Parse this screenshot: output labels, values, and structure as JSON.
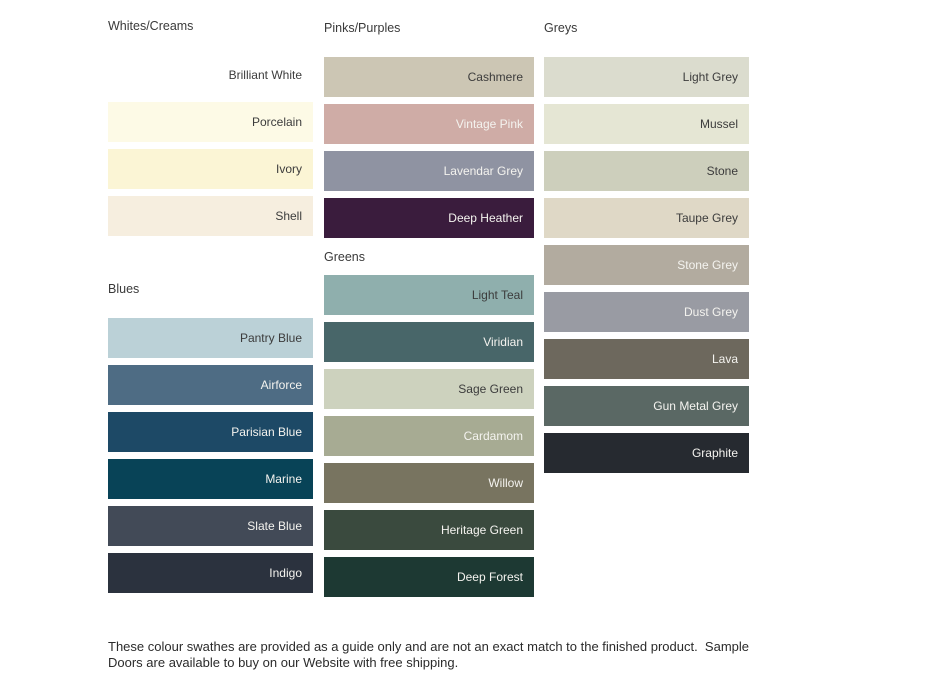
{
  "page": {
    "background": "#ffffff"
  },
  "text_colors": {
    "dark": "#3c3c3c",
    "light": "#f4f3ef"
  },
  "columns": [
    {
      "sections": [
        {
          "id": "whites-creams",
          "label": "Whites/Creams",
          "swatches": [
            {
              "name": "Brilliant White",
              "color": "#ffffff",
              "text": "dark"
            },
            {
              "name": "Porcelain",
              "color": "#fdfae6",
              "text": "dark"
            },
            {
              "name": "Ivory",
              "color": "#fbf5d5",
              "text": "dark"
            },
            {
              "name": "Shell",
              "color": "#f6eedf",
              "text": "dark"
            }
          ]
        },
        {
          "id": "blues",
          "label": "Blues",
          "swatches": [
            {
              "name": "Pantry Blue",
              "color": "#bbd1d7",
              "text": "dark"
            },
            {
              "name": "Airforce",
              "color": "#4e6c84",
              "text": "light"
            },
            {
              "name": "Parisian Blue",
              "color": "#1d4966",
              "text": "light"
            },
            {
              "name": "Marine",
              "color": "#084357",
              "text": "light"
            },
            {
              "name": "Slate Blue",
              "color": "#424a57",
              "text": "light"
            },
            {
              "name": "Indigo",
              "color": "#2b323e",
              "text": "light"
            }
          ]
        }
      ]
    },
    {
      "sections": [
        {
          "id": "pinks-purples",
          "label": "Pinks/Purples",
          "swatches": [
            {
              "name": "Cashmere",
              "color": "#ccc6b4",
              "text": "dark"
            },
            {
              "name": "Vintage Pink",
              "color": "#cfaca6",
              "text": "light"
            },
            {
              "name": "Lavendar Grey",
              "color": "#8f93a2",
              "text": "light"
            },
            {
              "name": "Deep Heather",
              "color": "#3a1c3d",
              "text": "light"
            }
          ]
        },
        {
          "id": "greens",
          "label": "Greens",
          "swatches": [
            {
              "name": "Light Teal",
              "color": "#8fafad",
              "text": "dark"
            },
            {
              "name": "Viridian",
              "color": "#486669",
              "text": "light"
            },
            {
              "name": "Sage Green",
              "color": "#cdd2be",
              "text": "dark"
            },
            {
              "name": "Cardamom",
              "color": "#a7ab93",
              "text": "light"
            },
            {
              "name": "Willow",
              "color": "#787460",
              "text": "light"
            },
            {
              "name": "Heritage Green",
              "color": "#3a4a3e",
              "text": "light"
            },
            {
              "name": "Deep Forest",
              "color": "#1d3933",
              "text": "light"
            }
          ]
        }
      ]
    },
    {
      "sections": [
        {
          "id": "greys",
          "label": "Greys",
          "swatches": [
            {
              "name": "Light Grey",
              "color": "#dbdcce",
              "text": "dark"
            },
            {
              "name": "Mussel",
              "color": "#e5e6d4",
              "text": "dark"
            },
            {
              "name": "Stone",
              "color": "#cdcfbc",
              "text": "dark"
            },
            {
              "name": "Taupe Grey",
              "color": "#dfd8c6",
              "text": "dark"
            },
            {
              "name": "Stone Grey",
              "color": "#b2ab9f",
              "text": "light"
            },
            {
              "name": "Dust Grey",
              "color": "#999ba3",
              "text": "light"
            },
            {
              "name": "Lava",
              "color": "#6d685d",
              "text": "light"
            },
            {
              "name": "Gun Metal Grey",
              "color": "#5a6864",
              "text": "light"
            },
            {
              "name": "Graphite",
              "color": "#262a30",
              "text": "light"
            }
          ]
        }
      ]
    }
  ],
  "footer": {
    "line1": "These colour swathes are provided as a guide only and are not an exact match to the finished product.  Sample",
    "line2": "Doors are available to buy on our Website with free shipping."
  }
}
